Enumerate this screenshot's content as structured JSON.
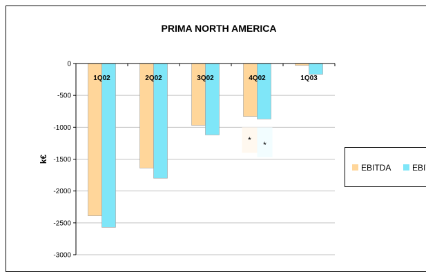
{
  "chart_data": {
    "type": "bar",
    "title": "PRIMA NORTH AMERICA",
    "xlabel": "",
    "ylabel": "k€",
    "ylim": [
      -3000,
      0
    ],
    "yticks": [
      "0",
      "-500",
      "-1000",
      "-1500",
      "-2000",
      "-2500",
      "-3000"
    ],
    "categories": [
      "1Q02",
      "2Q02",
      "3Q02",
      "4Q02",
      "1Q03"
    ],
    "series": [
      {
        "name": "EBITDA",
        "color": "#FFD69A",
        "values": [
          -2390,
          -1640,
          -970,
          -830,
          -30
        ]
      },
      {
        "name": "EBIT",
        "color": "#7FE6F8",
        "values": [
          -2570,
          -1800,
          -1120,
          -870,
          -170
        ]
      }
    ],
    "annotations": [
      {
        "category": "4Q02",
        "text": "*"
      },
      {
        "category": "4Q02",
        "text": "*"
      }
    ],
    "grid": true,
    "legend": "right"
  }
}
